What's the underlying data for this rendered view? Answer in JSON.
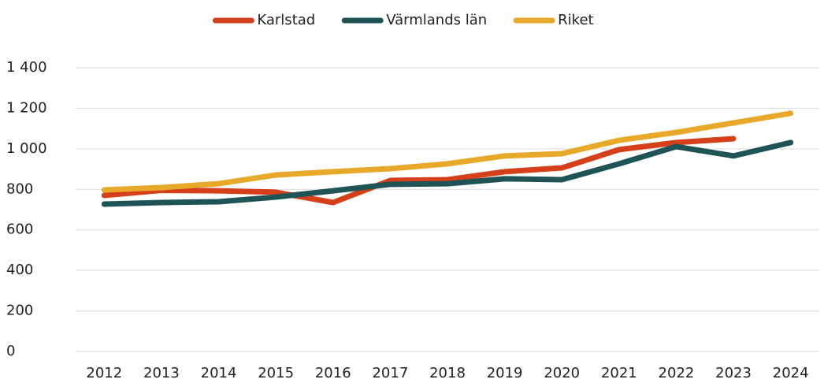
{
  "chart_data": {
    "type": "line",
    "categories": [
      "2012",
      "2013",
      "2014",
      "2015",
      "2016",
      "2017",
      "2018",
      "2019",
      "2020",
      "2021",
      "2022",
      "2023",
      "2024"
    ],
    "series": [
      {
        "name": "Karlstad",
        "color": "#d5401a",
        "values": [
          770,
          795,
          793,
          786,
          735,
          844,
          848,
          887,
          906,
          996,
          1031,
          1050,
          null
        ]
      },
      {
        "name": "Värmlands län",
        "color": "#1f5457",
        "values": [
          727,
          735,
          739,
          762,
          793,
          825,
          828,
          852,
          848,
          926,
          1011,
          965,
          1031
        ]
      },
      {
        "name": "Riket",
        "color": "#e8a92a",
        "values": [
          797,
          809,
          828,
          871,
          887,
          902,
          926,
          965,
          976,
          1042,
          1081,
          1128,
          1175
        ]
      }
    ],
    "ylim": [
      0,
      1400
    ],
    "yticks": [
      0,
      200,
      400,
      600,
      800,
      {
        "value": 1000,
        "label": "1 000"
      },
      {
        "value": 1200,
        "label": "1 200"
      },
      {
        "value": 1400,
        "label": "1 400"
      }
    ],
    "grid": true,
    "legend": "top"
  }
}
